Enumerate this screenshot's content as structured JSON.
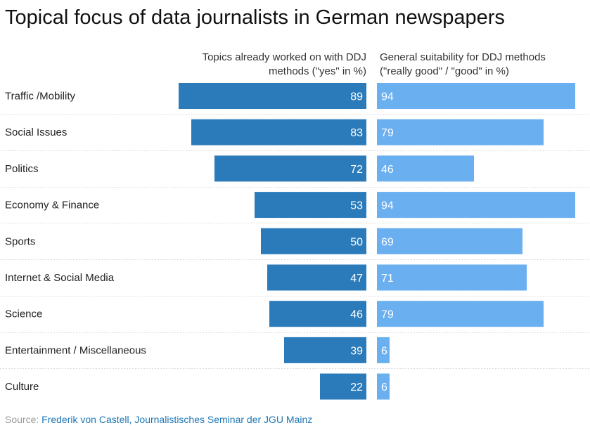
{
  "title": "Topical focus of data journalists in German newspapers",
  "columns": {
    "left": {
      "line1": "Topics already worked on with DDJ",
      "line2": "methods (\"yes\" in %)"
    },
    "right": {
      "line1": "General suitability for DDJ methods",
      "line2": "(\"really good\" / \"good\" in %)"
    }
  },
  "source": {
    "label": "Source:",
    "text": "Frederik von Castell, Journalistisches Seminar der JGU Mainz"
  },
  "colors": {
    "left_bar": "#2b7bba",
    "right_bar": "#6aaff0",
    "row_divider": "#dddddd"
  },
  "chart_data": {
    "type": "bar",
    "orientation": "horizontal",
    "categories": [
      "Traffic /Mobility",
      "Social Issues",
      "Politics",
      "Economy & Finance",
      "Sports",
      "Internet & Social Media",
      "Science",
      "Entertainment / Miscellaneous",
      "Culture"
    ],
    "series": [
      {
        "name": "Topics already worked on with DDJ methods (\"yes\" in %)",
        "values": [
          89,
          83,
          72,
          53,
          50,
          47,
          46,
          39,
          22
        ]
      },
      {
        "name": "General suitability for DDJ methods (\"really good\" / \"good\" in %)",
        "values": [
          94,
          79,
          46,
          94,
          69,
          71,
          79,
          6,
          6
        ]
      }
    ],
    "xlim": [
      0,
      100
    ]
  }
}
